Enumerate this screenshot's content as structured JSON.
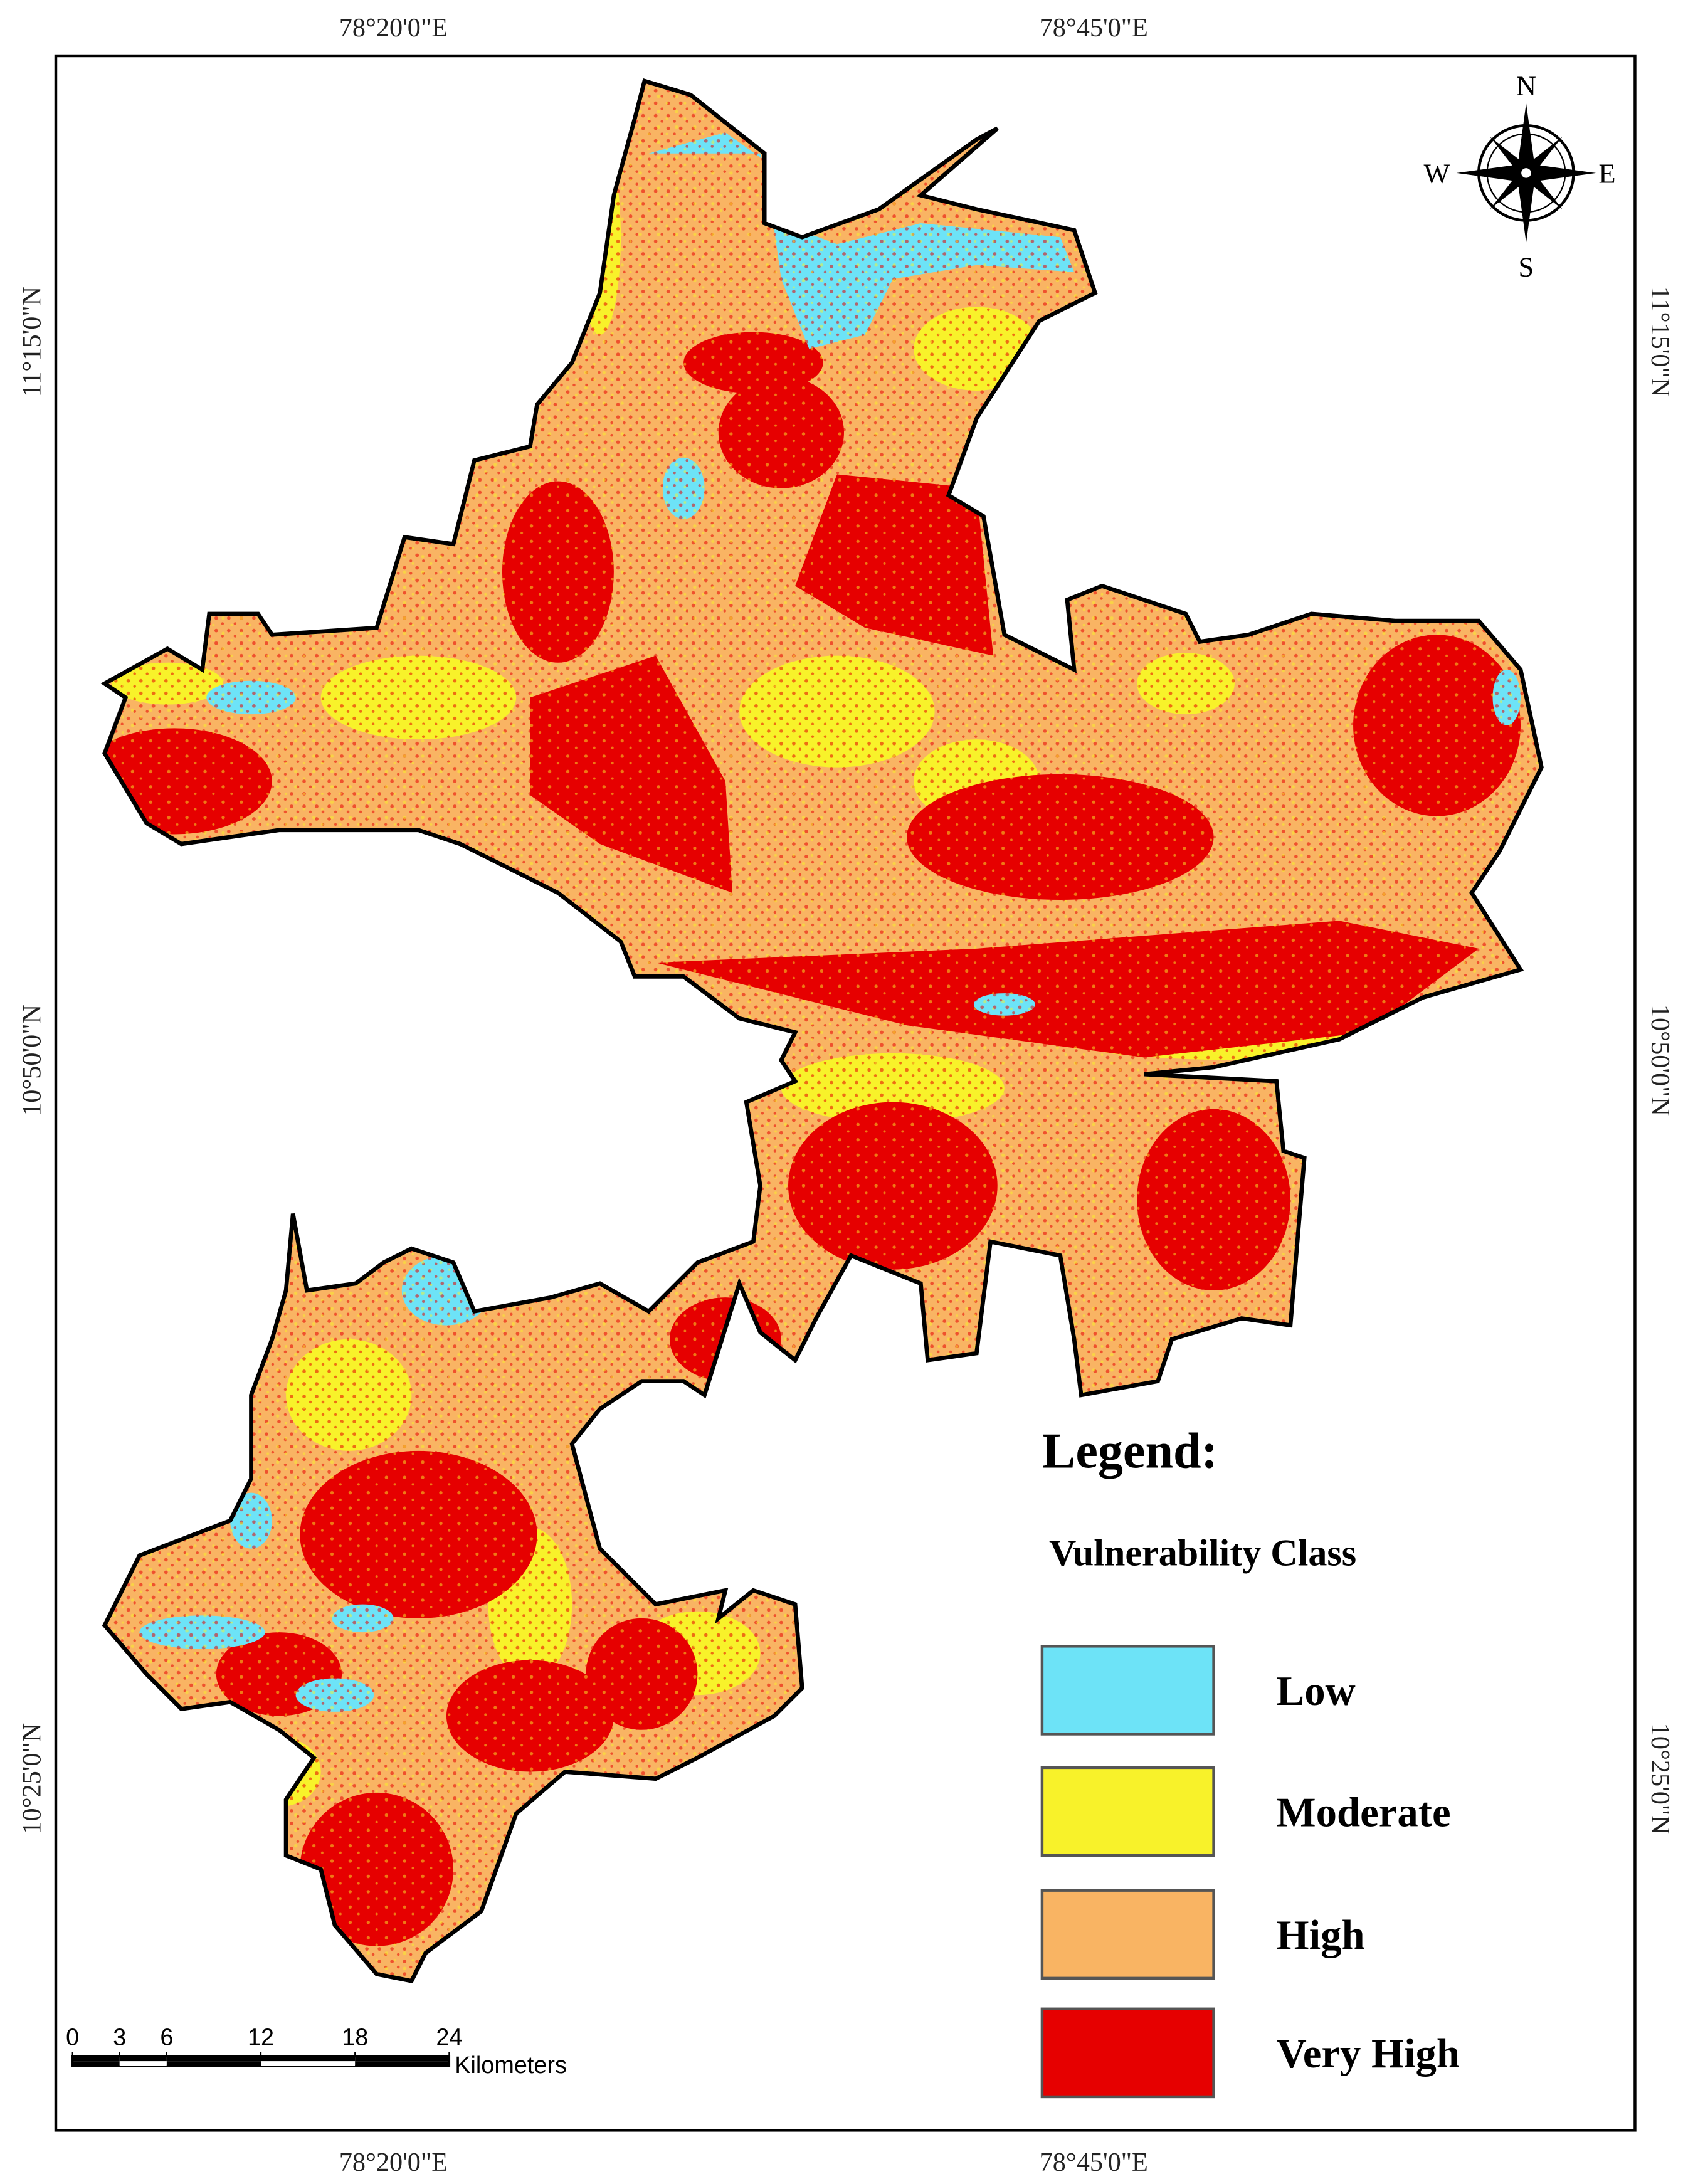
{
  "map": {
    "graticule": {
      "top": [
        "78°20'0\"E",
        "78°45'0\"E"
      ],
      "bottom": [
        "78°20'0\"E",
        "78°45'0\"E"
      ],
      "left": [
        "11°15'0\"N",
        "10°50'0\"N",
        "10°25'0\"N"
      ],
      "right": [
        "11°15'0\"N",
        "10°50'0\"N",
        "10°25'0\"N"
      ]
    },
    "compass": {
      "n": "N",
      "e": "E",
      "s": "S",
      "w": "W"
    },
    "legend": {
      "title": "Legend:",
      "subtitle": "Vulnerability Class",
      "classes": [
        {
          "name": "Low",
          "color": "#6de3f7"
        },
        {
          "name": "Moderate",
          "color": "#f8f22a"
        },
        {
          "name": "High",
          "color": "#f9b463"
        },
        {
          "name": "Very High",
          "color": "#e60000"
        }
      ]
    },
    "scale_bar": {
      "ticks": [
        0,
        3,
        6,
        12,
        18,
        24
      ],
      "unit": "Kilometers"
    }
  }
}
